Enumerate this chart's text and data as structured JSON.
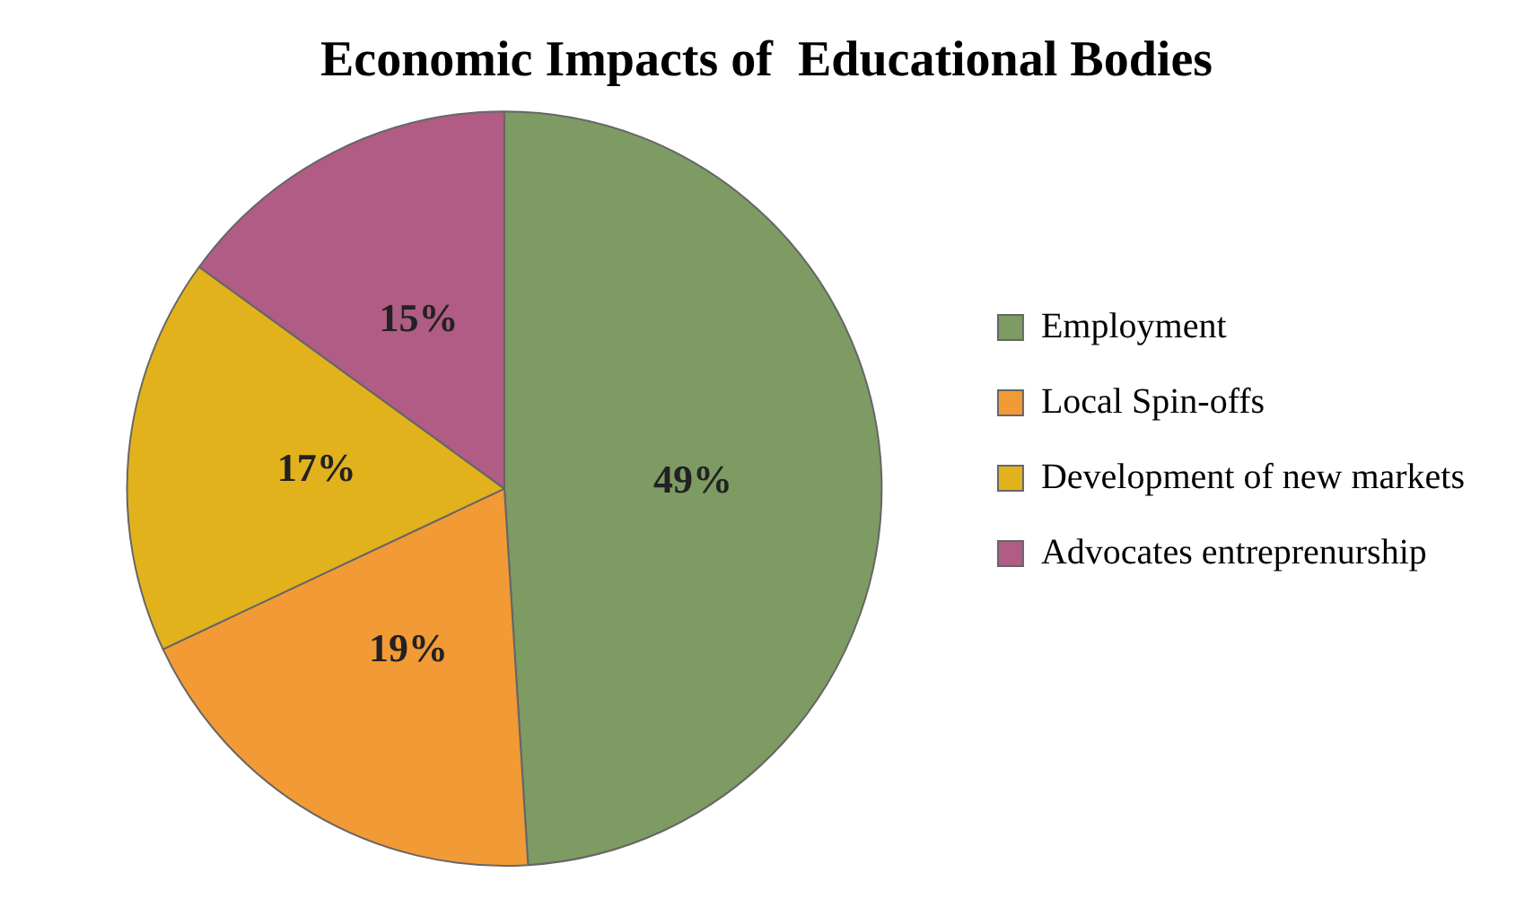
{
  "chart_data": {
    "type": "pie",
    "title": "Economic Impacts of  Educational Bodies",
    "categories": [
      "Employment",
      "Local Spin-offs",
      "Development of new markets",
      "Advocates entreprenurship"
    ],
    "values": [
      49,
      19,
      17,
      15
    ],
    "colors": [
      "#7d9b63",
      "#f29a35",
      "#e2b21c",
      "#b05c84"
    ],
    "value_labels": [
      "49%",
      "19%",
      "17%",
      "15%"
    ],
    "legend": "right"
  }
}
